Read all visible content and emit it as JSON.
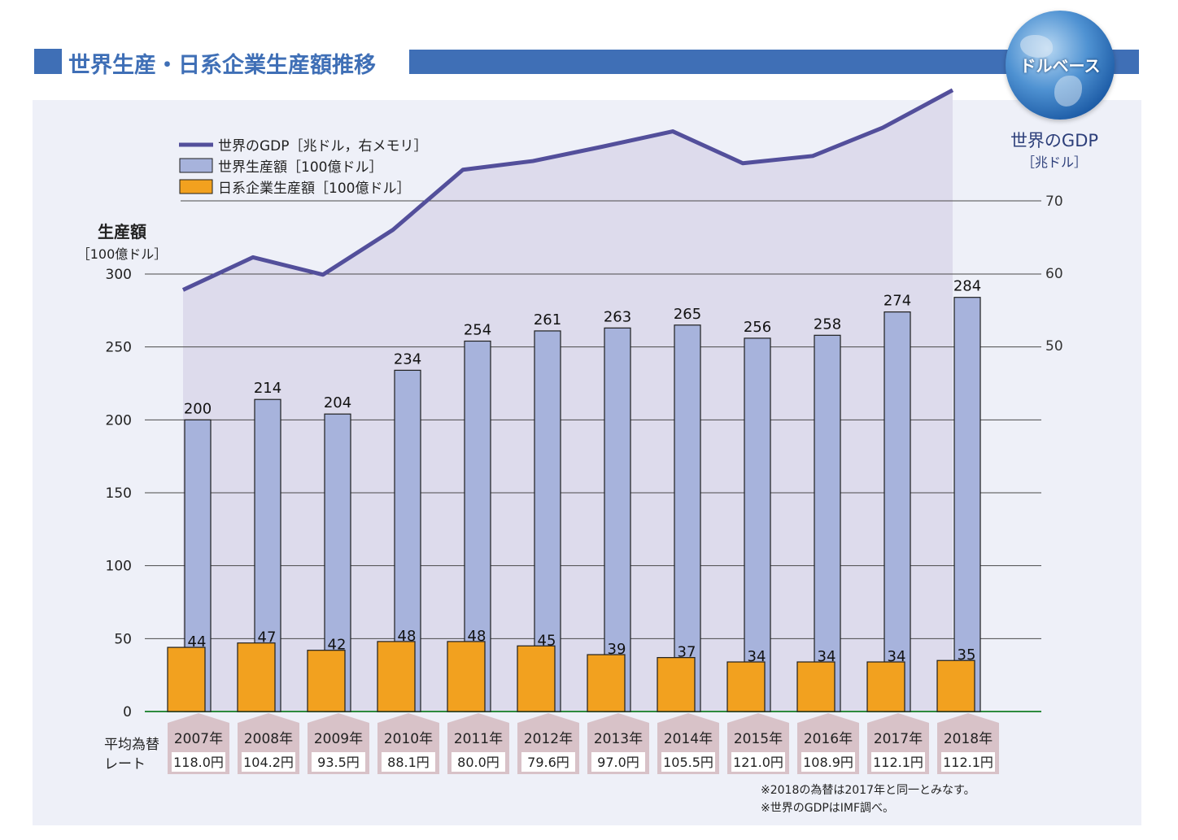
{
  "header": {
    "title": "世界生産・日系企業生産額推移",
    "badge": "ドルベース"
  },
  "colors": {
    "brand": "#3f6fb6",
    "gdp_line": "#534f9b",
    "gdp_area": "#dddbec",
    "world_bar": "#a7b3dc",
    "japan_bar": "#f2a11f",
    "year_tag": "#d8c2c8"
  },
  "chart_data": {
    "type": "bar",
    "categories": [
      "2007年",
      "2008年",
      "2009年",
      "2010年",
      "2011年",
      "2012年",
      "2013年",
      "2014年",
      "2015年",
      "2016年",
      "2017年",
      "2018年"
    ],
    "series": [
      {
        "name": "世界生産額［100億ドル］",
        "axis": "left",
        "values": [
          200,
          214,
          204,
          234,
          254,
          261,
          263,
          265,
          256,
          258,
          274,
          284
        ]
      },
      {
        "name": "日系企業生産額［100億ドル］",
        "axis": "left",
        "values": [
          44,
          47,
          42,
          48,
          48,
          45,
          39,
          37,
          34,
          34,
          34,
          35
        ]
      },
      {
        "name": "世界のGDP［兆ドル，右メモリ］",
        "axis": "right",
        "type": "line",
        "values": [
          57.7,
          62.2,
          59.8,
          66.0,
          74.3,
          75.5,
          77.5,
          79.6,
          75.2,
          76.2,
          80.1,
          85.3
        ]
      }
    ],
    "exchange_rates": [
      "118.0円",
      "104.2円",
      "93.5円",
      "88.1円",
      "80.0円",
      "79.6円",
      "97.0円",
      "105.5円",
      "121.0円",
      "108.9円",
      "112.1円",
      "112.1円"
    ],
    "left_axis": {
      "title": "生産額",
      "unit": "［100億ドル］",
      "ylim": [
        0,
        300
      ],
      "ticks": [
        "0",
        "50",
        "100",
        "150",
        "200",
        "250",
        "300"
      ]
    },
    "right_axis": {
      "title": "世界のGDP",
      "unit": "［兆ドル］",
      "ticks": [
        "50",
        "60",
        "70"
      ]
    },
    "row_label": [
      "平均為替",
      "レート"
    ],
    "notes": [
      "※2018の為替は2017年と同一とみなす。",
      "※世界のGDPはIMF調べ。"
    ]
  }
}
